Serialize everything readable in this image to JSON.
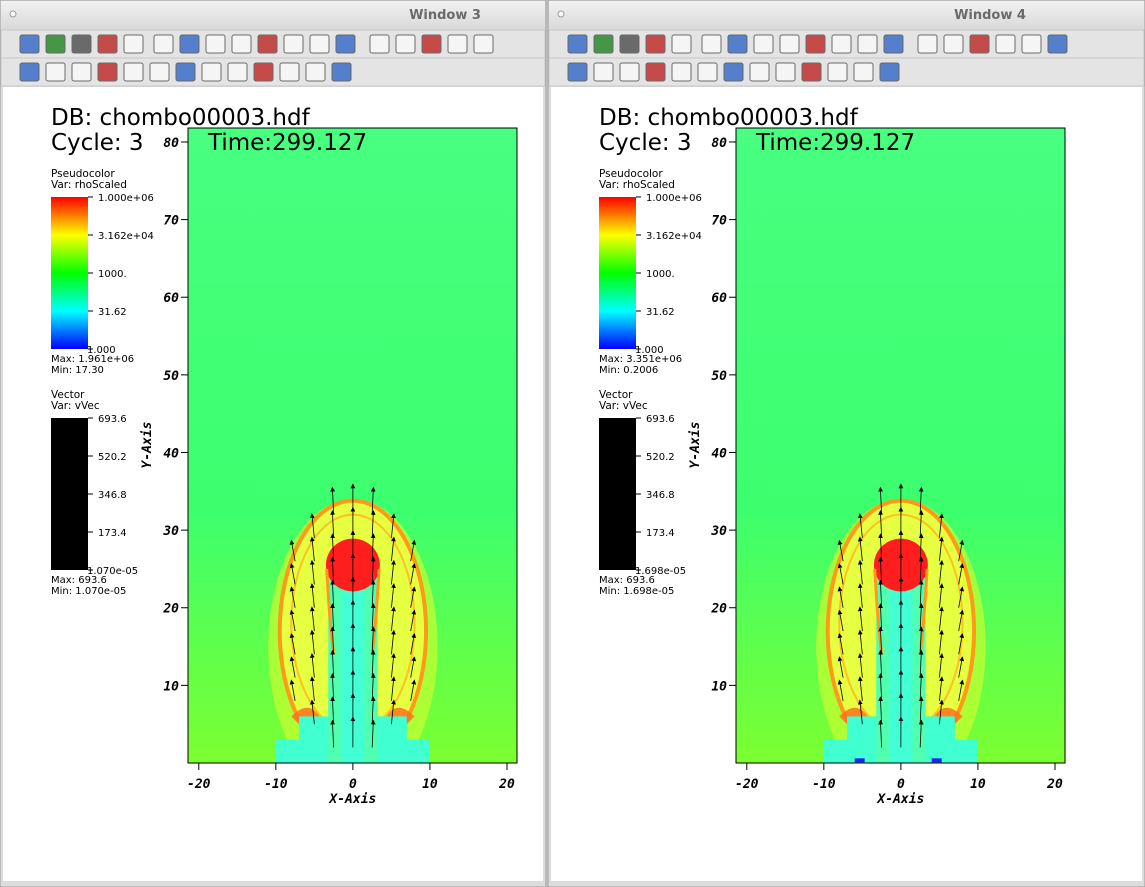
{
  "windows": [
    {
      "title": "Window 3",
      "db": "DB: chombo00003.hdf",
      "cycle": "Cycle: 3",
      "time": "Time:299.127",
      "pseudocolor": {
        "title": "Pseudocolor",
        "var": "Var: rhoScaled",
        "labels": [
          "1.000e+06",
          "3.162e+04",
          "1000.",
          "31.62",
          "1.000"
        ],
        "max": "Max:  1.961e+06",
        "min": "Min:  17.30"
      },
      "vector": {
        "title": "Vector",
        "var": "Var: vVec",
        "labels": [
          "693.6",
          "520.2",
          "346.8",
          "173.4",
          "1.070e-05"
        ],
        "max": "Max:  693.6",
        "min": "Min:  1.070e-05"
      },
      "plot": {
        "x_label": "X-Axis",
        "y_label": "Y-Axis",
        "xlim": [
          -21.4,
          21.3
        ],
        "ylim": [
          0,
          81.8
        ],
        "xticks": [
          -20,
          -10,
          0,
          10,
          20
        ],
        "yticks": [
          10,
          20,
          30,
          40,
          50,
          60,
          70,
          80
        ]
      }
    },
    {
      "title": "Window 4",
      "db": "DB: chombo00003.hdf",
      "cycle": "Cycle: 3",
      "time": "Time:299.127",
      "pseudocolor": {
        "title": "Pseudocolor",
        "var": "Var: rhoScaled",
        "labels": [
          "1.000e+06",
          "3.162e+04",
          "1000.",
          "31.62",
          "1.000"
        ],
        "max": "Max:  3.351e+06",
        "min": "Min:  0.2006"
      },
      "vector": {
        "title": "Vector",
        "var": "Var: vVec",
        "labels": [
          "693.6",
          "520.2",
          "346.8",
          "173.4",
          "1.698e-05"
        ],
        "max": "Max:  693.6",
        "min": "Min:  1.698e-05"
      },
      "plot": {
        "x_label": "X-Axis",
        "y_label": "Y-Axis",
        "xlim": [
          -21.4,
          21.3
        ],
        "ylim": [
          0,
          81.8
        ],
        "xticks": [
          -20,
          -10,
          0,
          10,
          20
        ],
        "yticks": [
          10,
          20,
          30,
          40,
          50,
          60,
          70,
          80
        ]
      }
    }
  ]
}
